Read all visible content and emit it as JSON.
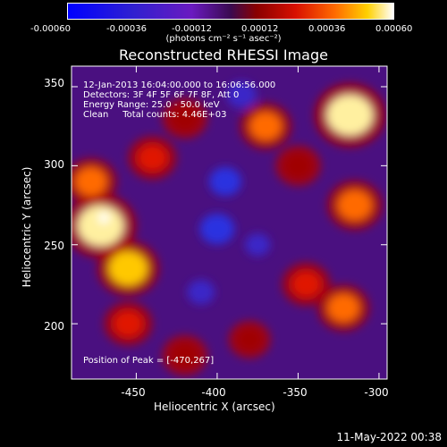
{
  "colorbar": {
    "ticks": [
      "-0.00060",
      "-0.00036",
      "-0.00012",
      "0.00012",
      "0.00036",
      "0.00060"
    ],
    "units": "(photons cm⁻² s⁻¹ asec⁻²)"
  },
  "info": {
    "line1": "12-Jan-2013 16:04:00.000 to 16:06:56.000",
    "line2": "Detectors: 3F 4F 5F 6F 7F 8F, Att 0",
    "line3": "Energy Range: 25.0 - 50.0 keV",
    "line4": "Clean     Total counts: 4.46E+03",
    "peak": "Position of Peak = [-470,267]"
  },
  "footer": {
    "timestamp": "11-May-2022 00:38"
  },
  "chart_data": {
    "type": "heatmap",
    "title": "Reconstructed RHESSI Image",
    "xlabel": "Heliocentric X (arcsec)",
    "ylabel": "Heliocentric Y (arcsec)",
    "xlim": [
      -490,
      -295
    ],
    "ylim": [
      165,
      363
    ],
    "xticks": [
      -450,
      -400,
      -350,
      -300
    ],
    "yticks": [
      200,
      250,
      300,
      350
    ],
    "value_range": [
      -0.0006,
      0.0006
    ],
    "peak": [
      -470,
      267
    ],
    "hot_spots": [
      {
        "x": -472,
        "y": 262,
        "value": 0.0006
      },
      {
        "x": -318,
        "y": 332,
        "value": 0.0006
      },
      {
        "x": -455,
        "y": 235,
        "value": 0.00045
      },
      {
        "x": -478,
        "y": 290,
        "value": 0.0003
      },
      {
        "x": -315,
        "y": 275,
        "value": 0.00035
      },
      {
        "x": -322,
        "y": 210,
        "value": 0.0003
      },
      {
        "x": -370,
        "y": 325,
        "value": 0.0003
      },
      {
        "x": -345,
        "y": 225,
        "value": 0.00025
      },
      {
        "x": -440,
        "y": 305,
        "value": 0.00025
      },
      {
        "x": -420,
        "y": 180,
        "value": 0.0002
      },
      {
        "x": -380,
        "y": 190,
        "value": 0.00015
      },
      {
        "x": -350,
        "y": 300,
        "value": 0.0002
      },
      {
        "x": -455,
        "y": 200,
        "value": 0.00025
      },
      {
        "x": -420,
        "y": 330,
        "value": 0.0002
      }
    ],
    "cold_spots": [
      {
        "x": -395,
        "y": 290,
        "value": -0.0003
      },
      {
        "x": -400,
        "y": 260,
        "value": -0.00035
      },
      {
        "x": -410,
        "y": 220,
        "value": -0.0002
      },
      {
        "x": -385,
        "y": 345,
        "value": -0.00025
      },
      {
        "x": -375,
        "y": 250,
        "value": -0.00015
      }
    ]
  }
}
